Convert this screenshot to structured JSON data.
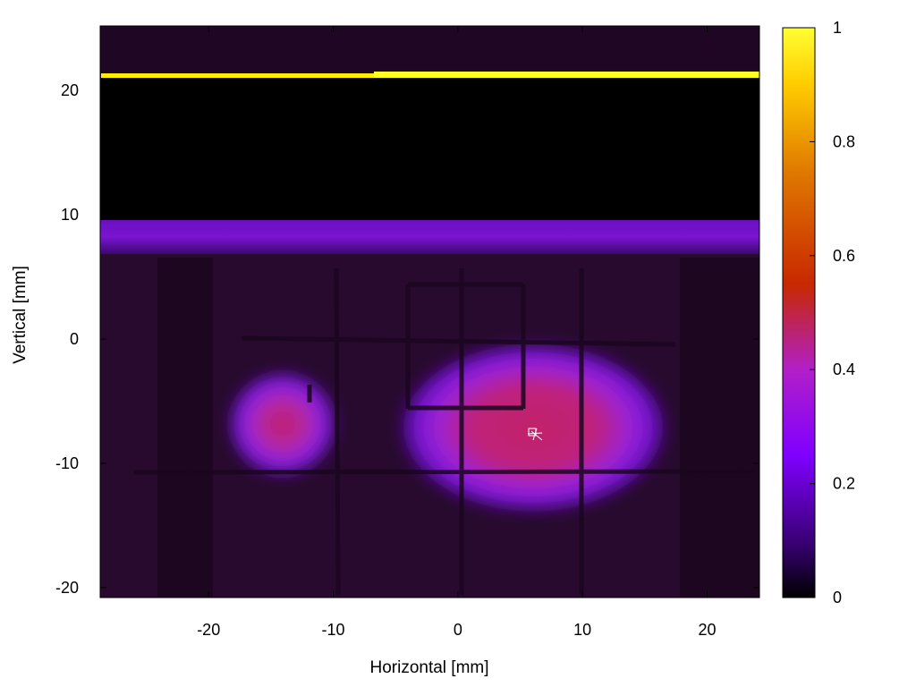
{
  "chart_data": {
    "type": "heatmap",
    "title": "",
    "xlabel": "Horizontal [mm]",
    "ylabel": "Vertical [mm]",
    "xlim": [
      -28.7,
      24.2
    ],
    "ylim": [
      -20.8,
      25.2
    ],
    "xticks": [
      -20,
      -10,
      0,
      10,
      20
    ],
    "yticks": [
      -20,
      -10,
      0,
      10,
      20
    ],
    "colorbar": {
      "range": [
        0,
        1
      ],
      "ticks": [
        0,
        0.2,
        0.4,
        0.6,
        0.8,
        1
      ],
      "colormap": [
        "#000000",
        "#3b0078",
        "#7f00ff",
        "#b21fc8",
        "#c82800",
        "#e07a00",
        "#ffcc00",
        "#ffff33"
      ]
    },
    "features": [
      {
        "name": "bright strip",
        "x": [
          -28.7,
          24.2
        ],
        "y": [
          20.9,
          21.4
        ],
        "value": 1.0
      },
      {
        "name": "purple band",
        "x": [
          -28.7,
          24.2
        ],
        "y": [
          6.8,
          9.4
        ],
        "value": 0.22
      },
      {
        "name": "dark region",
        "x": [
          -28.7,
          24.2
        ],
        "y": [
          9.4,
          20.8
        ],
        "value": 0.0
      },
      {
        "name": "left spot",
        "center": [
          -13.5,
          -7.3
        ],
        "value": 0.45
      },
      {
        "name": "main spot",
        "center": [
          6.0,
          -7.3
        ],
        "value": 0.5
      }
    ],
    "grid": false,
    "legend": "colorbar-right"
  }
}
